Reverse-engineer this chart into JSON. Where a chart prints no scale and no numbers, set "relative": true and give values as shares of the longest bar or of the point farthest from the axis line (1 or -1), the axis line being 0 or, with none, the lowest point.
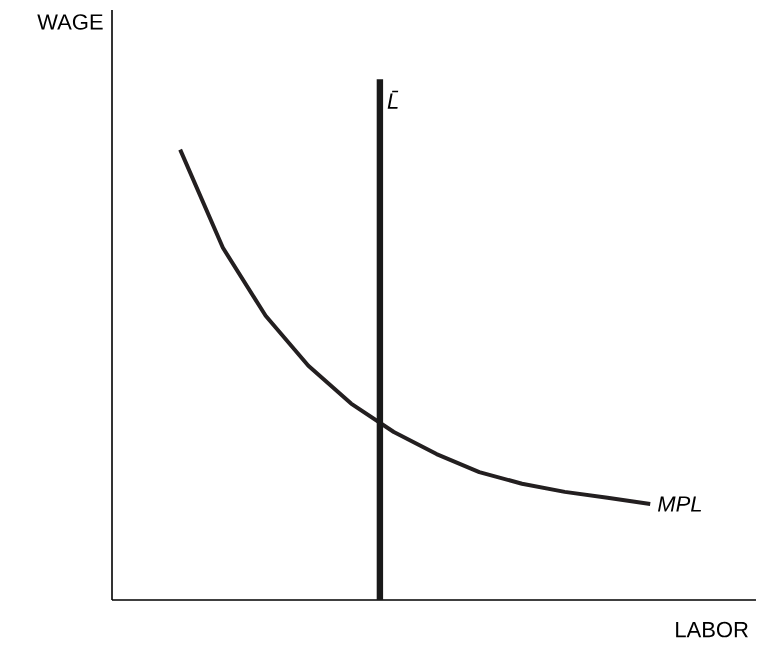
{
  "chart_data": {
    "type": "line",
    "relative": true,
    "xlabel": "LABOR",
    "legend": false,
    "categories": [
      null,
      null,
      null,
      null,
      null,
      null,
      null,
      null,
      null,
      null,
      null,
      null
    ],
    "series": [
      {
        "name": "MPL",
        "color": "#231f20",
        "values": [
          1.0,
          0.782,
          0.631,
          0.52,
          0.436,
          0.373,
          0.324,
          0.284,
          0.258,
          0.24,
          0.227,
          0.213
        ]
      }
    ],
    "annotations": [
      "WAGE",
      "L̄"
    ]
  }
}
